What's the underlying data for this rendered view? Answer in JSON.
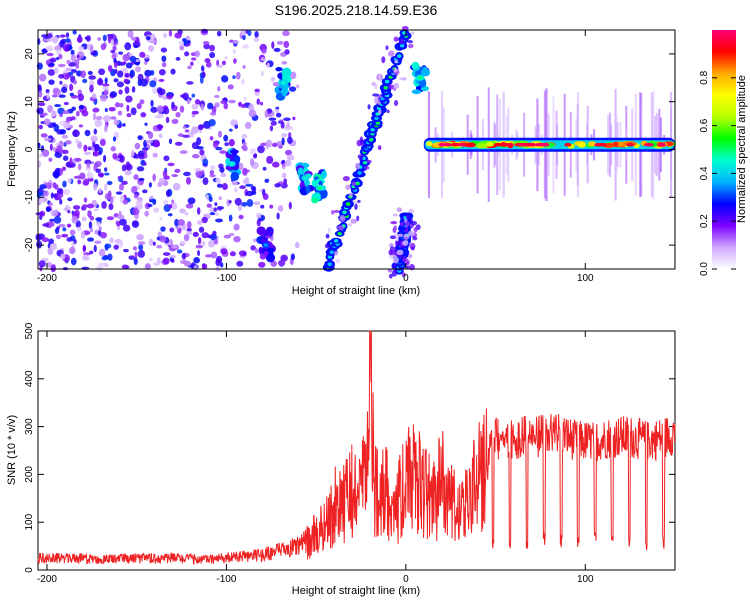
{
  "title": "S196.2025.218.14.59.E36",
  "chart_data": [
    {
      "type": "heatmap",
      "xlabel": "Height of straight line (km)",
      "ylabel": "Frequency (Hz)",
      "xlim": [
        -205,
        150
      ],
      "ylim": [
        -25,
        25
      ],
      "xticks": [
        -200,
        -100,
        0,
        100
      ],
      "yticks": [
        -20,
        -10,
        0,
        10,
        20
      ],
      "colorbar": {
        "label": "Normalized spectral amplitude",
        "range": [
          0,
          1
        ],
        "ticks": [
          "0.0",
          "0.2",
          "0.4",
          "0.6",
          "0.8"
        ],
        "tick_values": [
          0,
          0.2,
          0.4,
          0.6,
          0.8
        ],
        "colors": [
          "#ffffff",
          "#cfa8ff",
          "#7a00ff",
          "#0000ff",
          "#00b4ff",
          "#00ffd0",
          "#00ff00",
          "#b8ff00",
          "#ffff00",
          "#ffaa00",
          "#ff0000",
          "#ff0077"
        ]
      },
      "features": [
        {
          "kind": "noise-field",
          "x": [
            -205,
            -60
          ],
          "y": [
            -25,
            25
          ],
          "amplitude": 0.25
        },
        {
          "kind": "clump",
          "x": -97,
          "y": -3,
          "amplitude": 0.4
        },
        {
          "kind": "clump",
          "x": -68,
          "y": 14,
          "amplitude": 0.4
        },
        {
          "kind": "clump",
          "x": -56,
          "y": -6,
          "amplitude": 0.4
        },
        {
          "kind": "clump",
          "x": -48,
          "y": -8,
          "amplitude": 0.45
        },
        {
          "kind": "clump",
          "x": -78,
          "y": -20,
          "amplitude": 0.3
        },
        {
          "kind": "diagonal-ridge",
          "x0": -43,
          "y0": -24,
          "x1": 0,
          "y1": 25,
          "amplitude": 0.45
        },
        {
          "kind": "diagonal-ridge",
          "x0": -4,
          "y0": -25,
          "x1": 1,
          "y1": -14,
          "amplitude": 0.4
        },
        {
          "kind": "clump",
          "x": 8,
          "y": 15,
          "amplitude": 0.45
        },
        {
          "kind": "horizontal-band",
          "x": [
            10,
            150
          ],
          "y": 1,
          "amplitude": 0.9
        }
      ]
    },
    {
      "type": "line",
      "xlabel": "Height of straight line (km)",
      "ylabel": "SNR (10 * v/v)",
      "xlim": [
        -205,
        150
      ],
      "ylim": [
        0,
        500
      ],
      "xticks": [
        -200,
        -100,
        0,
        100
      ],
      "yticks": [
        0,
        100,
        200,
        300,
        400,
        500
      ],
      "color": "#ee2222",
      "series": [
        {
          "x": [
            -205,
            -190,
            -170,
            -150,
            -130,
            -110,
            -90,
            -80,
            -70,
            -60,
            -55,
            -50,
            -45,
            -40,
            -35,
            -30,
            -25,
            -22,
            -20,
            -18,
            -15,
            -10,
            -5,
            0,
            5,
            10,
            15,
            20,
            25,
            30,
            35,
            40,
            45,
            48,
            55,
            65,
            75,
            85,
            95,
            105,
            115,
            125,
            135,
            145,
            150
          ],
          "values": [
            25,
            25,
            22,
            24,
            25,
            22,
            28,
            32,
            40,
            50,
            60,
            80,
            100,
            140,
            150,
            170,
            180,
            190,
            500,
            200,
            180,
            170,
            140,
            190,
            200,
            180,
            150,
            200,
            150,
            120,
            160,
            200,
            220,
            300,
            290,
            300,
            300,
            310,
            290,
            290,
            300,
            300,
            290,
            300,
            310
          ]
        }
      ]
    }
  ]
}
